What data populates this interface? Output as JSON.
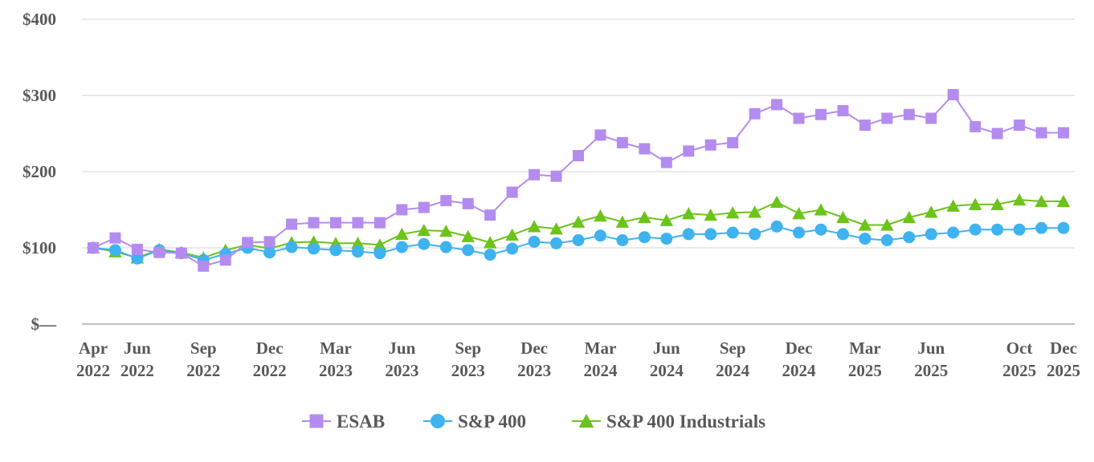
{
  "chart_data": {
    "type": "line",
    "title": "",
    "xlabel": "",
    "ylabel": "",
    "ylim": [
      0,
      400
    ],
    "y_ticks": [
      {
        "value": 0,
        "label": "$—"
      },
      {
        "value": 100,
        "label": "$100"
      },
      {
        "value": 200,
        "label": "$200"
      },
      {
        "value": 300,
        "label": "$300"
      },
      {
        "value": 400,
        "label": "$400"
      }
    ],
    "grid": true,
    "legend_position": "bottom",
    "x": [
      "Apr 2022",
      "May 2022",
      "Jun 2022",
      "Jul 2022",
      "Aug 2022",
      "Sep 2022",
      "Oct 2022",
      "Nov 2022",
      "Dec 2022",
      "Jan 2023",
      "Feb 2023",
      "Mar 2023",
      "Apr 2023",
      "May 2023",
      "Jun 2023",
      "Jul 2023",
      "Aug 2023",
      "Sep 2023",
      "Oct 2023",
      "Nov 2023",
      "Dec 2023",
      "Jan 2024",
      "Feb 2024",
      "Mar 2024",
      "Apr 2024",
      "May 2024",
      "Jun 2024",
      "Jul 2024",
      "Aug 2024",
      "Sep 2024",
      "Oct 2024",
      "Nov 2024",
      "Dec 2024",
      "Jan 2025",
      "Feb 2025",
      "Mar 2025",
      "Apr 2025",
      "May 2025",
      "Jun 2025",
      "Jul 2025",
      "Aug 2025",
      "Sep 2025",
      "Oct 2025",
      "Nov 2025",
      "Dec 2025"
    ],
    "x_tick_labels": [
      {
        "month": "Apr 2022",
        "line1": "Apr",
        "line2": "2022"
      },
      {
        "month": "Jun 2022",
        "line1": "Jun",
        "line2": "2022"
      },
      {
        "month": "Sep 2022",
        "line1": "Sep",
        "line2": "2022"
      },
      {
        "month": "Dec 2022",
        "line1": "Dec",
        "line2": "2022"
      },
      {
        "month": "Mar 2023",
        "line1": "Mar",
        "line2": "2023"
      },
      {
        "month": "Jun 2023",
        "line1": "Jun",
        "line2": "2023"
      },
      {
        "month": "Sep 2023",
        "line1": "Sep",
        "line2": "2023"
      },
      {
        "month": "Dec 2023",
        "line1": "Dec",
        "line2": "2023"
      },
      {
        "month": "Mar 2024",
        "line1": "Mar",
        "line2": "2024"
      },
      {
        "month": "Jun 2024",
        "line1": "Jun",
        "line2": "2024"
      },
      {
        "month": "Sep 2024",
        "line1": "Sep",
        "line2": "2024"
      },
      {
        "month": "Dec 2024",
        "line1": "Dec",
        "line2": "2024"
      },
      {
        "month": "Mar 2025",
        "line1": "Mar",
        "line2": "2025"
      },
      {
        "month": "Jun 2025",
        "line1": "Jun",
        "line2": "2025"
      },
      {
        "month": "Oct 2025",
        "line1": "Oct",
        "line2": "2025"
      },
      {
        "month": "Dec 2025",
        "line1": "Dec",
        "line2": "2025"
      }
    ],
    "series": [
      {
        "name": "ESAB",
        "color": "#b48cf0",
        "marker": "square",
        "values": [
          100,
          113,
          98,
          94,
          93,
          76,
          84,
          107,
          108,
          131,
          133,
          133,
          133,
          133,
          150,
          153,
          162,
          158,
          143,
          173,
          196,
          194,
          221,
          248,
          238,
          230,
          212,
          227,
          235,
          238,
          276,
          288,
          270,
          275,
          280,
          261,
          270,
          275,
          270,
          301,
          259,
          250,
          261,
          251,
          251
        ]
      },
      {
        "name": "S&P 400",
        "color": "#3fb2f0",
        "marker": "circle",
        "values": [
          100,
          97,
          86,
          97,
          93,
          84,
          92,
          100,
          94,
          101,
          99,
          97,
          95,
          93,
          101,
          105,
          101,
          97,
          91,
          99,
          108,
          106,
          110,
          116,
          110,
          114,
          112,
          118,
          118,
          120,
          118,
          128,
          120,
          124,
          118,
          112,
          110,
          114,
          118,
          120,
          124,
          124,
          124,
          126,
          126
        ]
      },
      {
        "name": "S&P 400 Industrials",
        "color": "#6cc31a",
        "marker": "triangle",
        "values": [
          100,
          95,
          87,
          98,
          94,
          87,
          97,
          104,
          99,
          107,
          108,
          106,
          106,
          104,
          118,
          123,
          122,
          115,
          107,
          117,
          128,
          125,
          134,
          142,
          134,
          140,
          136,
          145,
          143,
          146,
          147,
          160,
          145,
          150,
          140,
          130,
          130,
          140,
          147,
          155,
          157,
          157,
          163,
          161,
          161
        ]
      }
    ]
  }
}
